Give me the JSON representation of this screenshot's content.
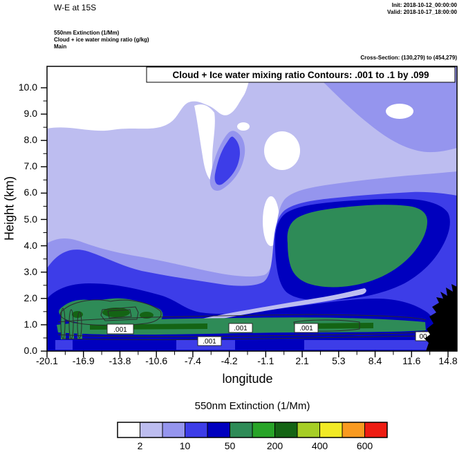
{
  "header": {
    "title": "W-E at 15S",
    "init_line": "Init: 2018-10-12_00:00:00",
    "valid_line": "Valid: 2018-10-17_18:00:00",
    "field_lines": [
      "550nm Extinction  (1/Mm)",
      "Cloud + ice water mixing ratio  (g/kg)",
      "Main"
    ],
    "cross_section": "Cross-Section: (130,279) to (454,279)"
  },
  "plot": {
    "annotation": "Cloud + Ice water mixing ratio Contours: .001 to .1 by .099",
    "xlabel": "longitude",
    "ylabel": "Height (km)",
    "yticks": [
      "0.0",
      "1.0",
      "2.0",
      "3.0",
      "4.0",
      "5.0",
      "6.0",
      "7.0",
      "8.0",
      "9.0",
      "10.0"
    ],
    "xticks": [
      "-20.1",
      "-16.9",
      "-13.8",
      "-10.6",
      "-7.4",
      "-4.2",
      "-1.1",
      "2.1",
      "5.3",
      "8.4",
      "11.6",
      "14.8"
    ],
    "contour_labels": [
      ".001",
      ".001",
      ".001",
      ".001",
      "00"
    ],
    "contour_color": "#2b2b2b",
    "terrain_color": "#000000",
    "frame_color": "#000000"
  },
  "colorbar": {
    "title": "550nm Extinction  (1/Mm)",
    "labels": [
      "2",
      "10",
      "50",
      "200",
      "400",
      "600"
    ],
    "colors": [
      "#ffffff",
      "#bdbdf0",
      "#9595ee",
      "#3d3de8",
      "#0000be",
      "#2e8b57",
      "#28a428",
      "#146414",
      "#a6ce26",
      "#f2ea25",
      "#f99a20",
      "#ee1c12"
    ]
  },
  "chart_data": {
    "type": "heatmap",
    "subtype": "filled-contour-vertical-cross-section",
    "title": "Cloud + Ice water mixing ratio Contours: .001 to .1 by .099",
    "xlabel": "longitude",
    "ylabel": "Height (km)",
    "x_ticks": [
      -20.1,
      -16.9,
      -13.8,
      -10.6,
      -7.4,
      -4.2,
      -1.1,
      2.1,
      5.3,
      8.4,
      11.6,
      14.8
    ],
    "y_ticks": [
      0,
      1,
      2,
      3,
      4,
      5,
      6,
      7,
      8,
      9,
      10
    ],
    "xlim": [
      -20.1,
      14.8
    ],
    "ylim": [
      0,
      10.8
    ],
    "fill_variable": "550nm Extinction (1/Mm)",
    "fill_level_labels": [
      2,
      10,
      50,
      200,
      400,
      600
    ],
    "contour_variable": "Cloud + Ice water mixing ratio (g/kg)",
    "contour_levels": [
      0.001,
      0.1
    ],
    "legend_position": "bottom",
    "grid": false,
    "features": [
      {
        "name": "clear-air",
        "desc": "white (extinction < 2) upper-left above ~8.5 km, and pockets near lon -8 to -1 between 4.5 and 8.5 km"
      },
      {
        "name": "weak-haze",
        "desc": "lavender layer (~2-10 1/Mm) filling most of the section from ~1.5 km to the top"
      },
      {
        "name": "moderate-layer",
        "desc": "blue band (~10-50 1/Mm) below ~3 km across the whole section and along the upper right edge"
      },
      {
        "name": "elevated-blue-patch",
        "desc": "small stronger blue patch near lon -7.5 at 6.5-8 km"
      },
      {
        "name": "main-plume",
        "desc": "green core (~200-400 1/Mm) near lon -1 to 8 at 2.5-4.5 km ringed by dark blue"
      },
      {
        "name": "surface-layer",
        "desc": "strong shallow green layer 0.3-1 km deep across the section, outlined by .001 g/kg cloud+ice mixing-ratio contours"
      },
      {
        "name": "terrain",
        "desc": "black orography at the right edge (lon ~13 to 14.8) up to ~2.3 km"
      }
    ]
  }
}
